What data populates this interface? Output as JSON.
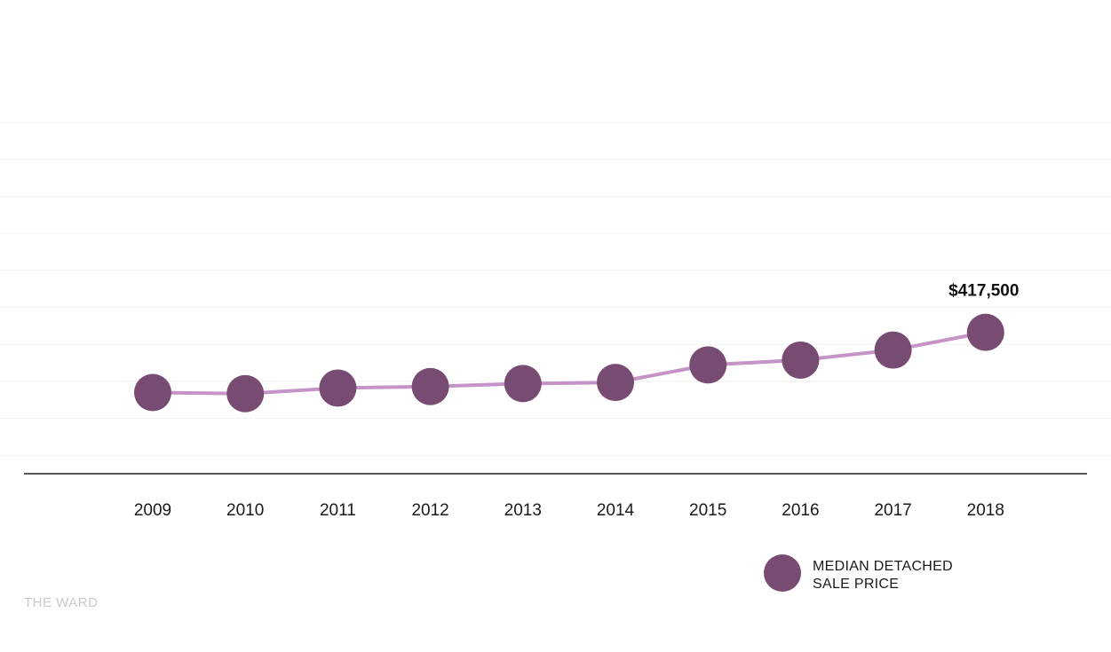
{
  "chart_data": {
    "type": "line",
    "title": "",
    "xlabel": "",
    "ylabel": "",
    "categories": [
      "2009",
      "2010",
      "2011",
      "2012",
      "2013",
      "2014",
      "2015",
      "2016",
      "2017",
      "2018"
    ],
    "series": [
      {
        "name": "MEDIAN DETACHED SALE PRICE",
        "legend_lines": [
          "MEDIAN DETACHED",
          "SALE PRICE"
        ],
        "color": "#774b72",
        "line_color": "#c593c6",
        "values": [
          256000,
          253000,
          268000,
          272000,
          280000,
          283000,
          330000,
          343000,
          370000,
          417500
        ]
      }
    ],
    "annotations": [
      {
        "category": "2018",
        "text": "$417,500"
      }
    ],
    "ylim": [
      0,
      800000
    ],
    "grid": true,
    "y_tick_labels_shown": false,
    "legend_position": "bottom-right"
  },
  "credit": "THE WARD",
  "colors": {
    "marker": "#774b72",
    "line": "#c593c6",
    "gridline": "#f3f3f3",
    "baseline": "#222222",
    "credit": "#c9c9c9"
  }
}
